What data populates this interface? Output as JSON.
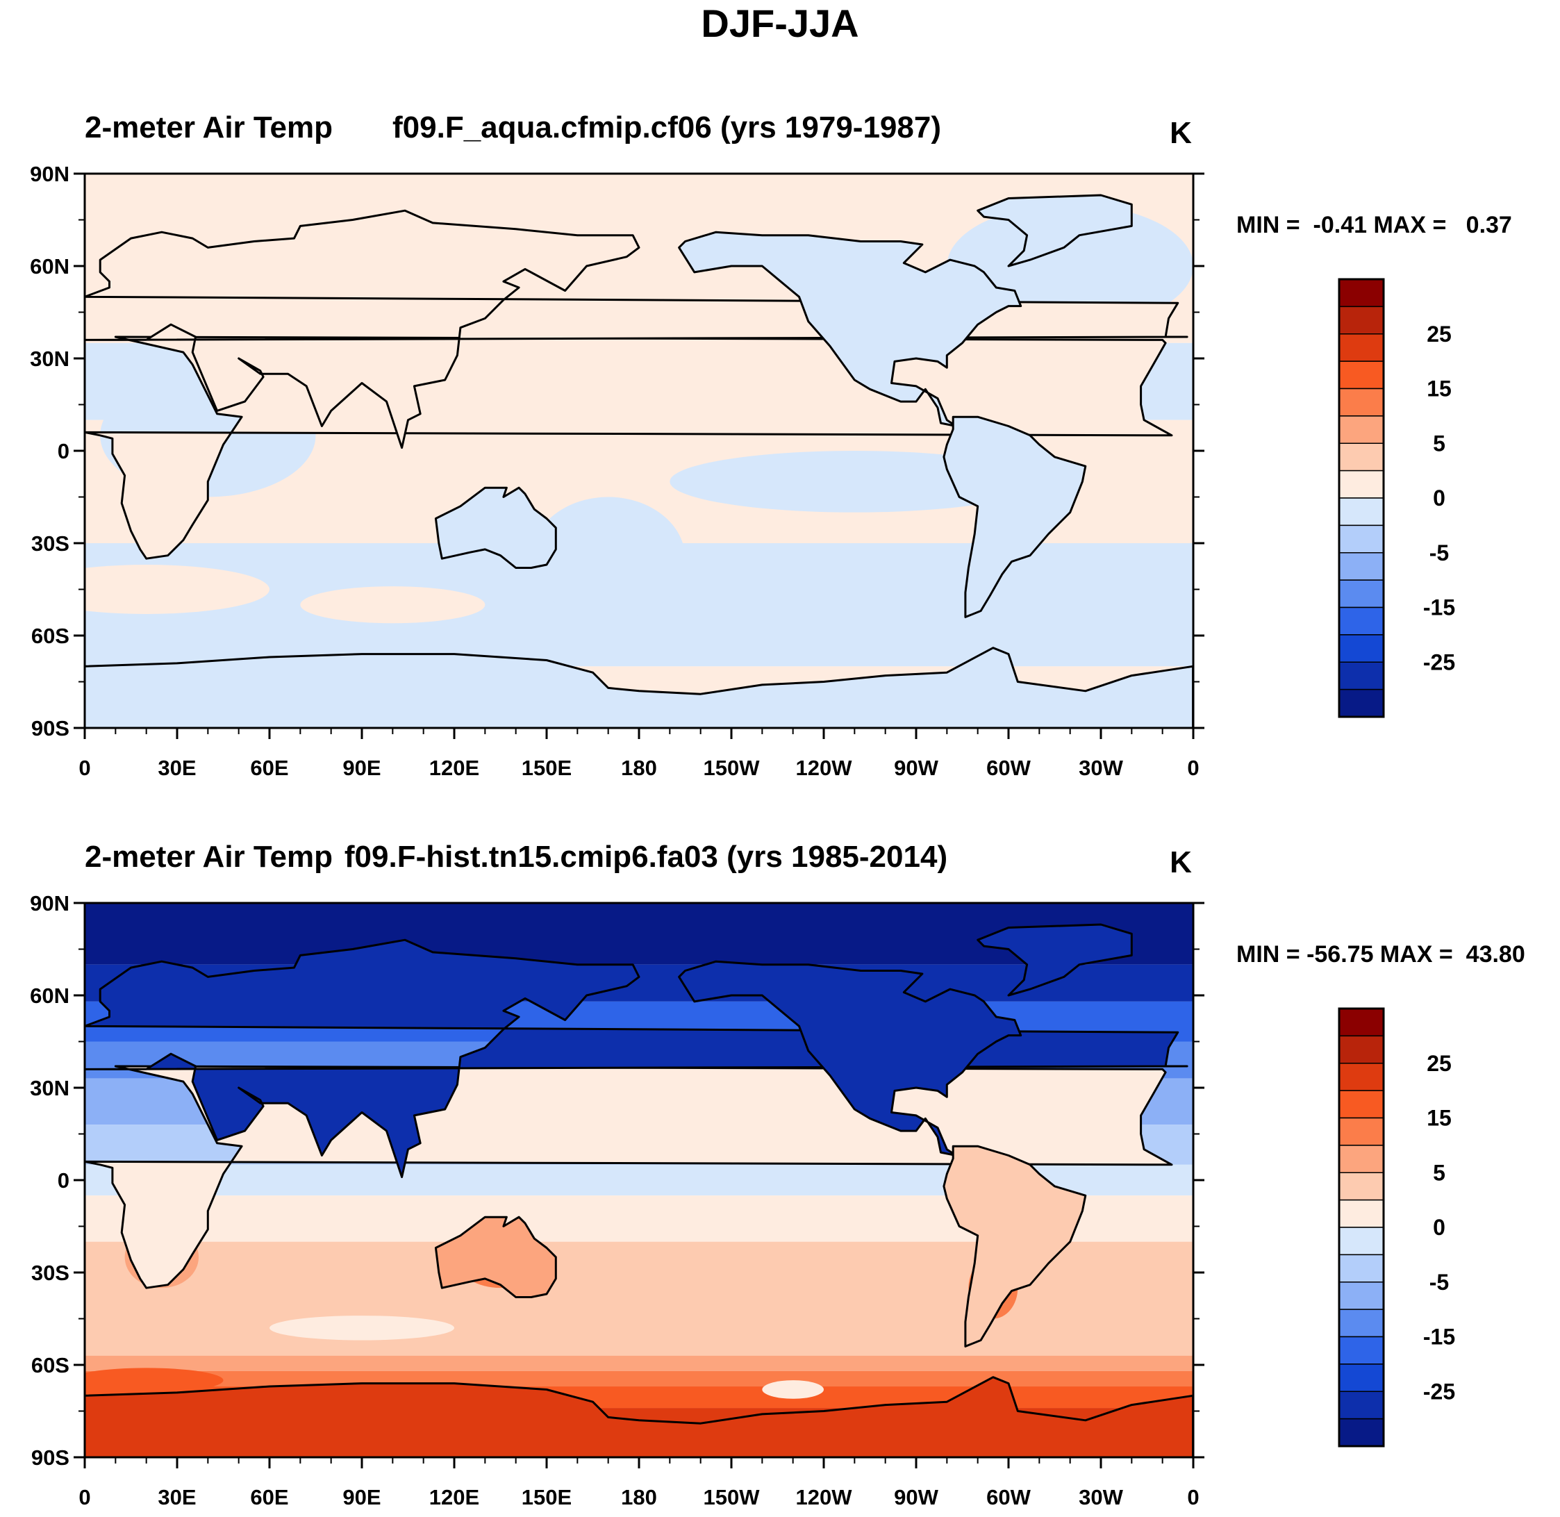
{
  "title": "DJF-JJA",
  "panels": [
    {
      "left_title": "2-meter Air Temp",
      "center_title": "f09.F_aqua.cfmip.cf06 (yrs 1979-1987)",
      "units": "K",
      "min_max": "MIN =  -0.41 MAX =   0.37",
      "pattern": "small"
    },
    {
      "left_title": "2-meter Air Temp",
      "center_title": "f09.F-hist.tn15.cmip6.fa03 (yrs 1985-2014)",
      "units": "K",
      "min_max": "MIN = -56.75 MAX =  43.80",
      "pattern": "seasonal"
    }
  ],
  "lat_labels": [
    "90N",
    "60N",
    "30N",
    "0",
    "30S",
    "60S",
    "90S"
  ],
  "lon_labels": [
    "0",
    "30E",
    "60E",
    "90E",
    "120E",
    "150E",
    "180",
    "150W",
    "120W",
    "90W",
    "60W",
    "30W",
    "0"
  ],
  "colorbar": {
    "labels": [
      "25",
      "15",
      "5",
      "0",
      "-5",
      "-15",
      "-25"
    ],
    "colors": [
      "#8b0000",
      "#b8240b",
      "#de3b10",
      "#f85a22",
      "#fb7d4a",
      "#fca57e",
      "#fdcbb0",
      "#feece0",
      "#d6e7fb",
      "#b3cefa",
      "#8cb0f6",
      "#5b8bf0",
      "#2e64e8",
      "#1448d4",
      "#0d2fac",
      "#071a87"
    ]
  },
  "chart_data": [
    {
      "type": "heatmap",
      "title": "2-meter Air Temp — f09.F_aqua.cfmip.cf06 (yrs 1979-1987)",
      "variable": "DJF-JJA 2-meter air temperature difference",
      "units": "K",
      "min": -0.41,
      "max": 0.37,
      "x_range": [
        0,
        360
      ],
      "y_range": [
        -90,
        90
      ],
      "contour_levels": [
        -30,
        -25,
        -20,
        -15,
        -10,
        -5,
        -2,
        0,
        2,
        5,
        10,
        15,
        20,
        25,
        30
      ]
    },
    {
      "type": "heatmap",
      "title": "2-meter Air Temp — f09.F-hist.tn15.cmip6.fa03 (yrs 1985-2014)",
      "variable": "DJF-JJA 2-meter air temperature difference",
      "units": "K",
      "min": -56.75,
      "max": 43.8,
      "x_range": [
        0,
        360
      ],
      "y_range": [
        -90,
        90
      ],
      "contour_levels": [
        -30,
        -25,
        -20,
        -15,
        -10,
        -5,
        -2,
        0,
        2,
        5,
        10,
        15,
        20,
        25,
        30
      ]
    }
  ]
}
